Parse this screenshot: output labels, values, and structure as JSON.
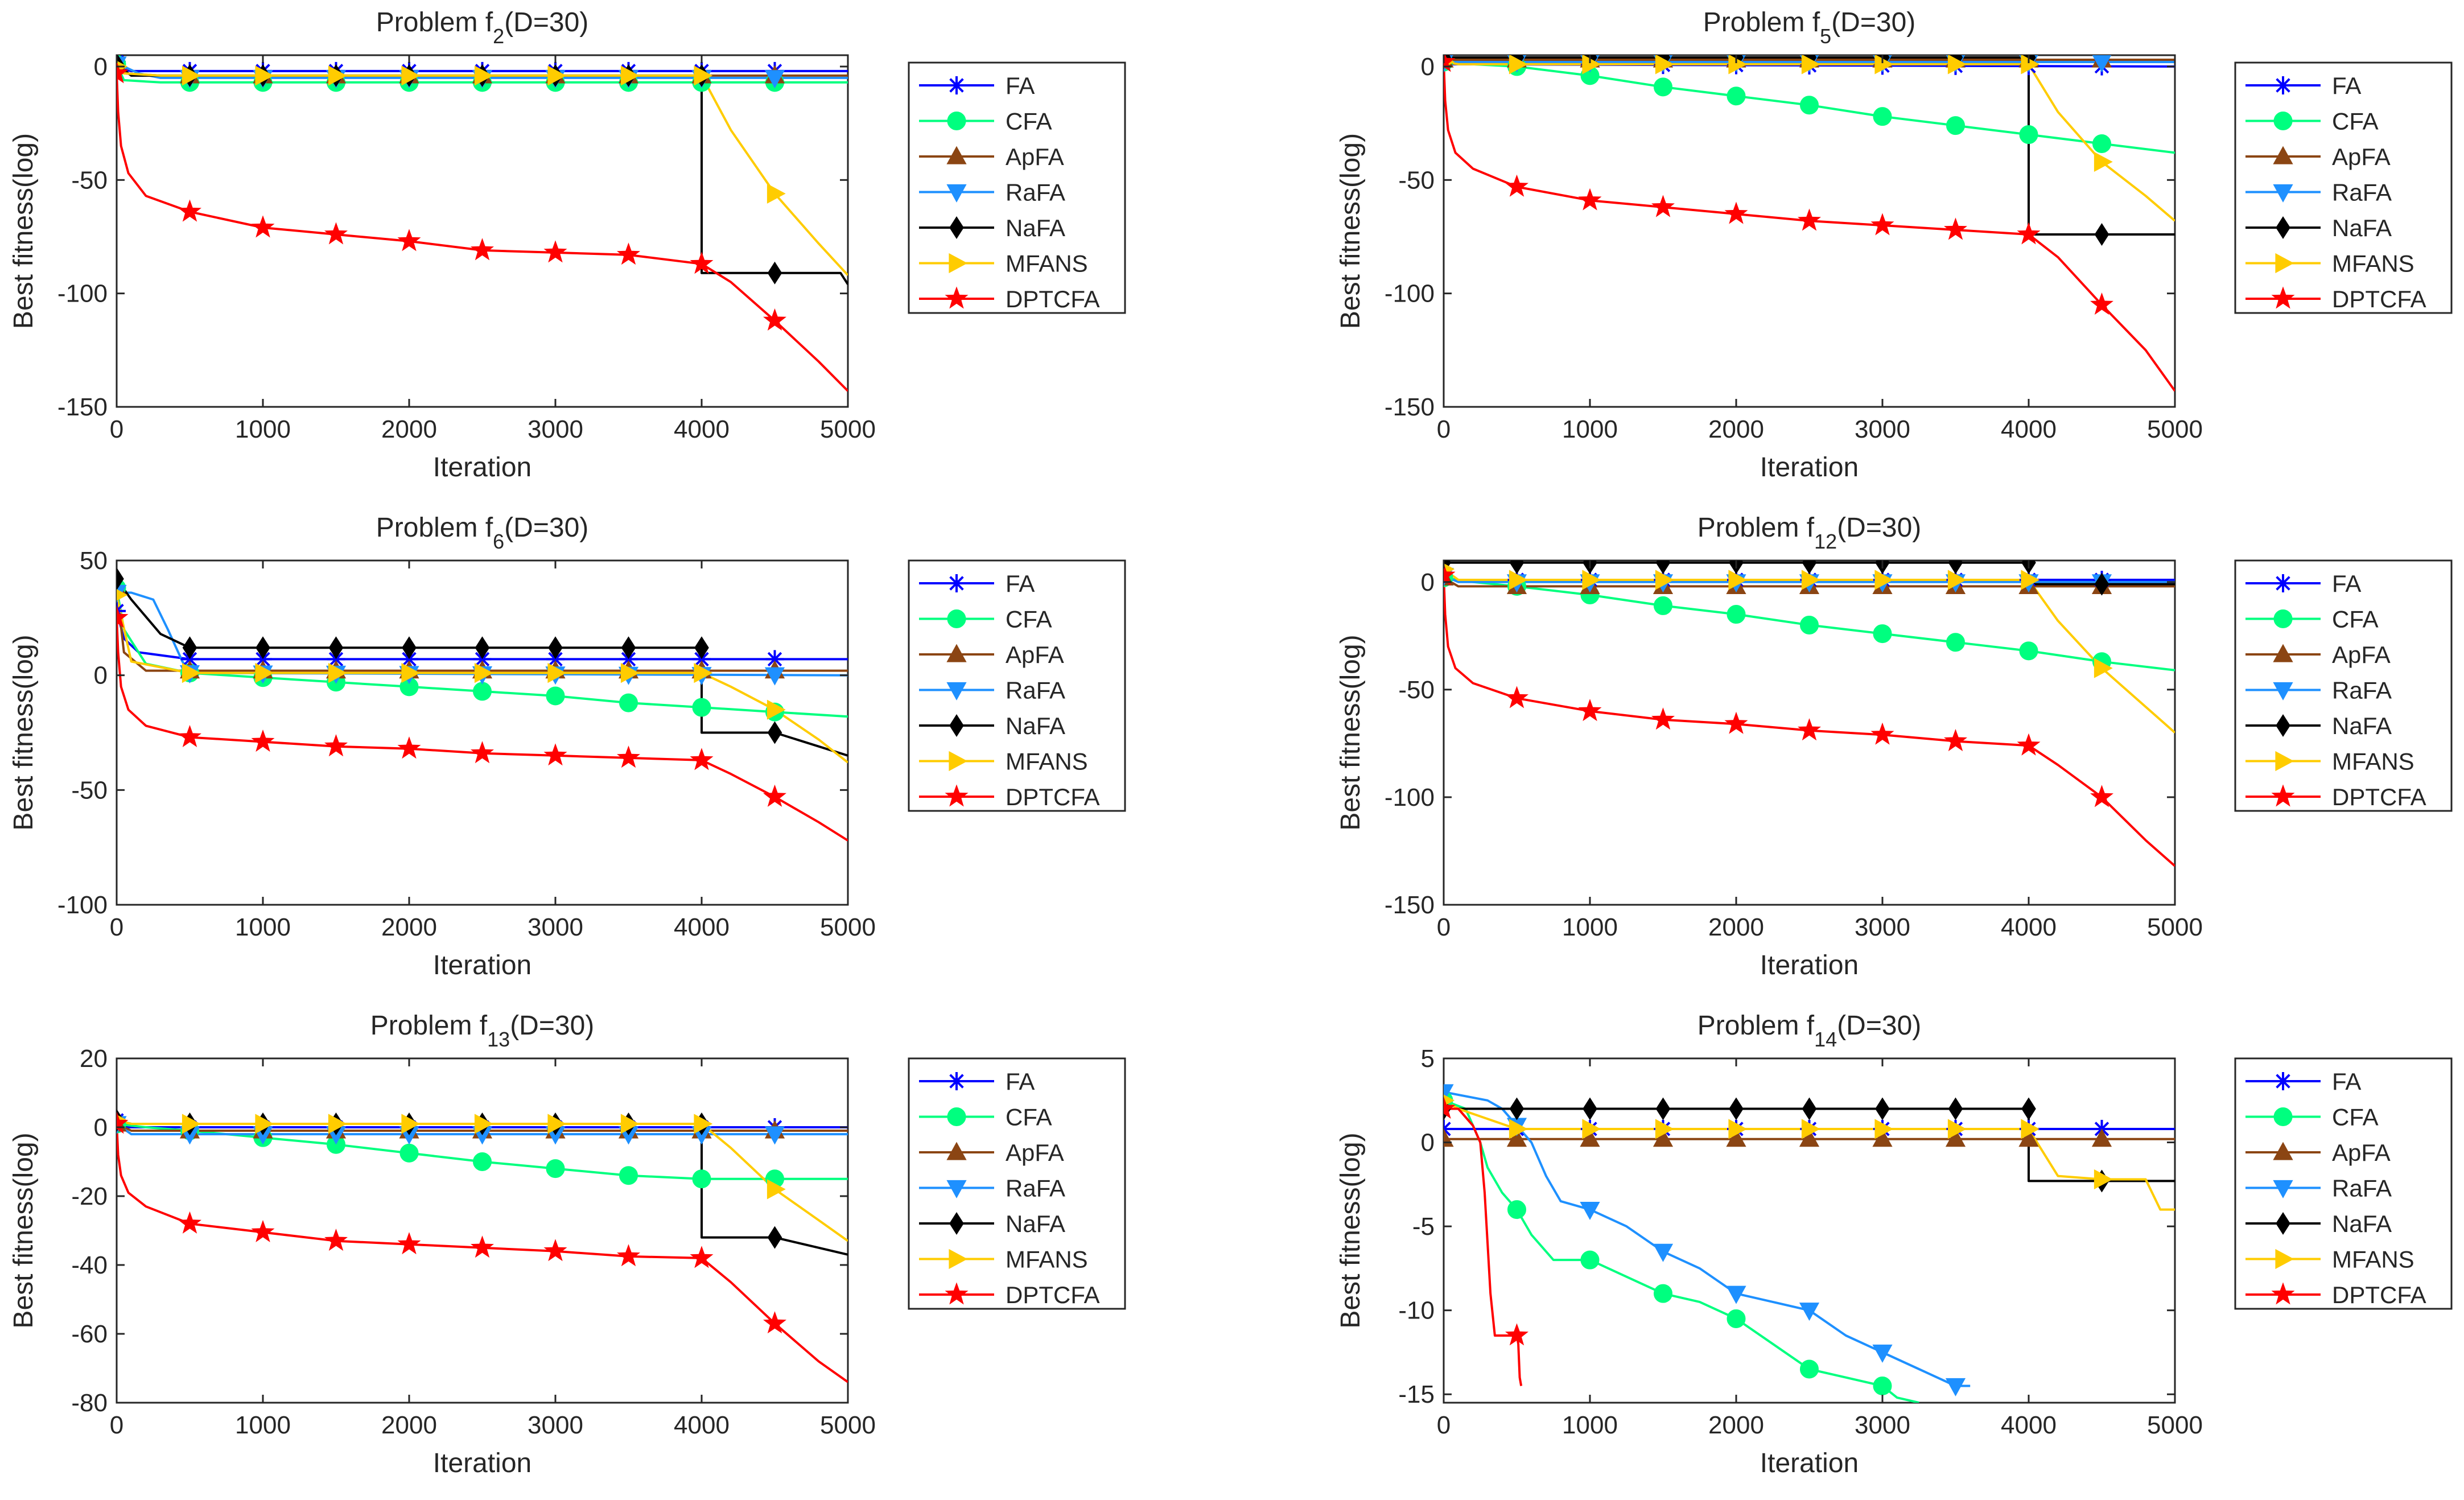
{
  "figure": {
    "layout": "3 rows x 2 columns"
  },
  "colors": {
    "FA": "#0000ff",
    "CFA": "#00ff7f",
    "ApFA": "#8b4513",
    "RaFA": "#1e90ff",
    "NaFA": "#000000",
    "MFANS": "#ffcc00",
    "DPTCFA": "#ff0000",
    "axis": "#262626",
    "legend_border": "#262626"
  },
  "legend_labels": [
    "FA",
    "CFA",
    "ApFA",
    "RaFA",
    "NaFA",
    "MFANS",
    "DPTCFA"
  ],
  "chart_data": [
    {
      "type": "line",
      "title_prefix": "Problem f",
      "title_sub": "2",
      "title_suffix": "(D=30)",
      "xlabel": "Iteration",
      "ylabel": "Best fitness(log)",
      "xlim": [
        0,
        5000
      ],
      "ylim": [
        -150,
        5
      ],
      "xticks": [
        0,
        1000,
        2000,
        3000,
        4000,
        5000
      ],
      "yticks": [
        0,
        -50,
        -100,
        -150
      ],
      "marker_x": [
        0,
        500,
        1000,
        1500,
        2000,
        2500,
        3000,
        3500,
        4000,
        4500
      ],
      "series": [
        {
          "name": "FA",
          "x": [
            0,
            20,
            100,
            5000
          ],
          "y": [
            2,
            -1,
            -2,
            -2
          ]
        },
        {
          "name": "CFA",
          "x": [
            0,
            50,
            300,
            5000
          ],
          "y": [
            1,
            -6,
            -7,
            -7
          ]
        },
        {
          "name": "ApFA",
          "x": [
            0,
            50,
            300,
            5000
          ],
          "y": [
            1,
            -3,
            -4,
            -4
          ]
        },
        {
          "name": "RaFA",
          "x": [
            0,
            50,
            150,
            300,
            5000
          ],
          "y": [
            1,
            0,
            -3,
            -5,
            -5
          ]
        },
        {
          "name": "NaFA",
          "x": [
            0,
            100,
            4000,
            4000,
            4950,
            5000
          ],
          "y": [
            1,
            -4,
            -4,
            -91,
            -91,
            -96
          ]
        },
        {
          "name": "MFANS",
          "x": [
            0,
            50,
            300,
            4000,
            4200,
            4500,
            4800,
            5000
          ],
          "y": [
            0,
            -3,
            -4,
            -4,
            -28,
            -56,
            -78,
            -92
          ]
        },
        {
          "name": "DPTCFA",
          "x": [
            0,
            10,
            30,
            80,
            200,
            500,
            1000,
            1500,
            2000,
            2500,
            3000,
            3500,
            4000,
            4200,
            4500,
            4800,
            5000
          ],
          "y": [
            -3,
            -20,
            -35,
            -47,
            -57,
            -64,
            -71,
            -74,
            -77,
            -81,
            -82,
            -83,
            -87,
            -95,
            -112,
            -130,
            -143
          ]
        }
      ]
    },
    {
      "type": "line",
      "title_prefix": "Problem f",
      "title_sub": "5",
      "title_suffix": "(D=30)",
      "xlabel": "Iteration",
      "ylabel": "Best fitness(log)",
      "xlim": [
        0,
        5000
      ],
      "ylim": [
        -150,
        5
      ],
      "xticks": [
        0,
        1000,
        2000,
        3000,
        4000,
        5000
      ],
      "yticks": [
        0,
        -50,
        -100,
        -150
      ],
      "marker_x": [
        0,
        500,
        1000,
        1500,
        2000,
        2500,
        3000,
        3500,
        4000,
        4500
      ],
      "series": [
        {
          "name": "FA",
          "x": [
            0,
            30,
            5000
          ],
          "y": [
            3,
            1,
            0
          ]
        },
        {
          "name": "CFA",
          "x": [
            0,
            200,
            500,
            1000,
            1500,
            2000,
            2500,
            3000,
            3500,
            4000,
            4500,
            5000
          ],
          "y": [
            2,
            1,
            0,
            -4,
            -9,
            -13,
            -17,
            -22,
            -26,
            -30,
            -34,
            -38
          ]
        },
        {
          "name": "ApFA",
          "x": [
            0,
            100,
            5000
          ],
          "y": [
            3,
            3,
            3
          ]
        },
        {
          "name": "RaFA",
          "x": [
            0,
            100,
            5000
          ],
          "y": [
            2,
            2,
            2
          ]
        },
        {
          "name": "NaFA",
          "x": [
            0,
            100,
            4000,
            4000,
            5000
          ],
          "y": [
            4,
            4,
            4,
            -74,
            -74
          ]
        },
        {
          "name": "MFANS",
          "x": [
            0,
            100,
            4000,
            4200,
            4500,
            4800,
            5000
          ],
          "y": [
            2,
            1,
            1,
            -20,
            -42,
            -57,
            -68
          ]
        },
        {
          "name": "DPTCFA",
          "x": [
            0,
            10,
            30,
            80,
            200,
            500,
            1000,
            1500,
            2000,
            2500,
            3000,
            3500,
            4000,
            4200,
            4500,
            4800,
            5000
          ],
          "y": [
            2,
            -15,
            -28,
            -38,
            -45,
            -53,
            -59,
            -62,
            -65,
            -68,
            -70,
            -72,
            -74,
            -84,
            -105,
            -125,
            -143
          ]
        }
      ]
    },
    {
      "type": "line",
      "title_prefix": "Problem f",
      "title_sub": "6",
      "title_suffix": "(D=30)",
      "xlabel": "Iteration",
      "ylabel": "Best fitness(log)",
      "xlim": [
        0,
        5000
      ],
      "ylim": [
        -100,
        50
      ],
      "xticks": [
        0,
        1000,
        2000,
        3000,
        4000,
        5000
      ],
      "yticks": [
        50,
        0,
        -50,
        -100
      ],
      "marker_x": [
        0,
        500,
        1000,
        1500,
        2000,
        2500,
        3000,
        3500,
        4000,
        4500
      ],
      "series": [
        {
          "name": "FA",
          "x": [
            0,
            50,
            150,
            500,
            5000
          ],
          "y": [
            28,
            16,
            10,
            7,
            7
          ]
        },
        {
          "name": "CFA",
          "x": [
            0,
            50,
            200,
            500,
            1000,
            1500,
            2000,
            2500,
            3000,
            3500,
            4000,
            4500,
            5000
          ],
          "y": [
            38,
            20,
            5,
            1,
            -1,
            -3,
            -5,
            -7,
            -9,
            -12,
            -14,
            -16,
            -18
          ]
        },
        {
          "name": "ApFA",
          "x": [
            0,
            50,
            200,
            5000
          ],
          "y": [
            38,
            10,
            2,
            2
          ]
        },
        {
          "name": "RaFA",
          "x": [
            0,
            100,
            250,
            350,
            450,
            500,
            5000
          ],
          "y": [
            36,
            36,
            33,
            20,
            6,
            1,
            0
          ]
        },
        {
          "name": "NaFA",
          "x": [
            0,
            100,
            300,
            500,
            4000,
            4000,
            4500,
            5000
          ],
          "y": [
            42,
            33,
            18,
            12,
            12,
            -25,
            -25,
            -35
          ]
        },
        {
          "name": "MFANS",
          "x": [
            0,
            100,
            500,
            4000,
            4200,
            4500,
            4800,
            5000
          ],
          "y": [
            35,
            6,
            1,
            1,
            -5,
            -15,
            -28,
            -38
          ]
        },
        {
          "name": "DPTCFA",
          "x": [
            0,
            10,
            30,
            80,
            200,
            500,
            1000,
            1500,
            2000,
            2500,
            3000,
            3500,
            4000,
            4200,
            4500,
            4800,
            5000
          ],
          "y": [
            25,
            10,
            -5,
            -15,
            -22,
            -27,
            -29,
            -31,
            -32,
            -34,
            -35,
            -36,
            -37,
            -43,
            -53,
            -64,
            -72
          ]
        }
      ]
    },
    {
      "type": "line",
      "title_prefix": "Problem f",
      "title_sub": "12",
      "title_suffix": "(D=30)",
      "xlabel": "Iteration",
      "ylabel": "Best fitness(log)",
      "xlim": [
        0,
        5000
      ],
      "ylim": [
        -150,
        10
      ],
      "xticks": [
        0,
        1000,
        2000,
        3000,
        4000,
        5000
      ],
      "yticks": [
        0,
        -50,
        -100,
        -150
      ],
      "marker_x": [
        0,
        500,
        1000,
        1500,
        2000,
        2500,
        3000,
        3500,
        4000,
        4500
      ],
      "series": [
        {
          "name": "FA",
          "x": [
            0,
            30,
            5000
          ],
          "y": [
            3,
            1,
            1
          ]
        },
        {
          "name": "CFA",
          "x": [
            0,
            200,
            500,
            1000,
            1500,
            2000,
            2500,
            3000,
            3500,
            4000,
            4500,
            5000
          ],
          "y": [
            2,
            0,
            -2,
            -6,
            -11,
            -15,
            -20,
            -24,
            -28,
            -32,
            -37,
            -41
          ]
        },
        {
          "name": "ApFA",
          "x": [
            0,
            100,
            5000
          ],
          "y": [
            2,
            -2,
            -2
          ]
        },
        {
          "name": "RaFA",
          "x": [
            0,
            100,
            5000
          ],
          "y": [
            3,
            0,
            0
          ]
        },
        {
          "name": "NaFA",
          "x": [
            0,
            100,
            4000,
            4000,
            5000
          ],
          "y": [
            9,
            9,
            9,
            -1,
            -1
          ]
        },
        {
          "name": "MFANS",
          "x": [
            0,
            100,
            4000,
            4200,
            4500,
            4800,
            5000
          ],
          "y": [
            6,
            1,
            1,
            -18,
            -40,
            -58,
            -70
          ]
        },
        {
          "name": "DPTCFA",
          "x": [
            0,
            10,
            30,
            80,
            200,
            500,
            1000,
            1500,
            2000,
            2500,
            3000,
            3500,
            4000,
            4200,
            4500,
            4800,
            5000
          ],
          "y": [
            3,
            -15,
            -30,
            -40,
            -47,
            -54,
            -60,
            -64,
            -66,
            -69,
            -71,
            -74,
            -76,
            -85,
            -100,
            -120,
            -132
          ]
        }
      ]
    },
    {
      "type": "line",
      "title_prefix": "Problem f",
      "title_sub": "13",
      "title_suffix": "(D=30)",
      "xlabel": "Iteration",
      "ylabel": "Best fitness(log)",
      "xlim": [
        0,
        5000
      ],
      "ylim": [
        -80,
        20
      ],
      "xticks": [
        0,
        1000,
        2000,
        3000,
        4000,
        5000
      ],
      "yticks": [
        20,
        0,
        -20,
        -40,
        -60,
        -80
      ],
      "marker_x": [
        0,
        500,
        1000,
        1500,
        2000,
        2500,
        3000,
        3500,
        4000,
        4500
      ],
      "series": [
        {
          "name": "FA",
          "x": [
            0,
            30,
            5000
          ],
          "y": [
            2,
            0,
            0
          ]
        },
        {
          "name": "CFA",
          "x": [
            0,
            200,
            500,
            1000,
            1500,
            2000,
            2500,
            3000,
            3500,
            4000,
            4200,
            5000
          ],
          "y": [
            1,
            0,
            -1,
            -3,
            -5,
            -7.5,
            -10,
            -12,
            -14,
            -15,
            -15,
            -15
          ]
        },
        {
          "name": "ApFA",
          "x": [
            0,
            100,
            5000
          ],
          "y": [
            1,
            -1,
            -1
          ]
        },
        {
          "name": "RaFA",
          "x": [
            0,
            100,
            5000
          ],
          "y": [
            1,
            -2,
            -2
          ]
        },
        {
          "name": "NaFA",
          "x": [
            0,
            100,
            4000,
            4000,
            4500,
            5000
          ],
          "y": [
            2,
            1,
            1,
            -32,
            -32,
            -37
          ]
        },
        {
          "name": "MFANS",
          "x": [
            0,
            100,
            4000,
            4200,
            4500,
            4800,
            5000
          ],
          "y": [
            2,
            1,
            1,
            -6,
            -18,
            -27,
            -33
          ]
        },
        {
          "name": "DPTCFA",
          "x": [
            0,
            10,
            30,
            80,
            200,
            500,
            1000,
            1500,
            2000,
            2500,
            3000,
            3500,
            4000,
            4200,
            4500,
            4800,
            5000
          ],
          "y": [
            1,
            -8,
            -14,
            -19,
            -23,
            -28,
            -30.5,
            -33,
            -34,
            -35,
            -36,
            -37.5,
            -38,
            -45,
            -57,
            -68,
            -74
          ]
        }
      ]
    },
    {
      "type": "line",
      "title_prefix": "Problem f",
      "title_sub": "14",
      "title_suffix": "(D=30)",
      "xlabel": "Iteration",
      "ylabel": "Best fitness(log)",
      "xlim": [
        0,
        5000
      ],
      "ylim": [
        -15.5,
        5
      ],
      "xticks": [
        0,
        1000,
        2000,
        3000,
        4000,
        5000
      ],
      "yticks": [
        5,
        0,
        -5,
        -10,
        -15
      ],
      "marker_x": [
        0,
        500,
        1000,
        1500,
        2000,
        2500,
        3000,
        3500,
        4000,
        4500
      ],
      "series": [
        {
          "name": "FA",
          "x": [
            0,
            5000
          ],
          "y": [
            0.8,
            0.8
          ]
        },
        {
          "name": "CFA",
          "x": [
            0,
            150,
            250,
            300,
            400,
            500,
            600,
            750,
            1000,
            1250,
            1500,
            1750,
            2000,
            2250,
            2500,
            2750,
            3000,
            3100,
            3250
          ],
          "y": [
            2.5,
            2,
            0,
            -1.5,
            -3,
            -4,
            -5.5,
            -7,
            -7,
            -8,
            -9,
            -9.5,
            -10.5,
            -12,
            -13.5,
            -14,
            -14.5,
            -15.2,
            -15.5
          ]
        },
        {
          "name": "ApFA",
          "x": [
            0,
            5000
          ],
          "y": [
            0.2,
            0.2
          ]
        },
        {
          "name": "RaFA",
          "x": [
            0,
            300,
            400,
            500,
            600,
            700,
            800,
            1000,
            1250,
            1500,
            1750,
            2000,
            2250,
            2500,
            2750,
            3000,
            3250,
            3500,
            3600
          ],
          "y": [
            3,
            2.5,
            2,
            1,
            0,
            -2,
            -3.5,
            -4,
            -5,
            -6.5,
            -7.5,
            -9,
            -9.5,
            -10,
            -11.5,
            -12.5,
            -13.5,
            -14.5,
            -14.5
          ]
        },
        {
          "name": "NaFA",
          "x": [
            0,
            100,
            4000,
            4000,
            5000
          ],
          "y": [
            2,
            2,
            2,
            -2.3,
            -2.3
          ]
        },
        {
          "name": "MFANS",
          "x": [
            0,
            100,
            500,
            4000,
            4200,
            4500,
            4800,
            4900,
            5000
          ],
          "y": [
            2.5,
            2,
            0.8,
            0.8,
            -2,
            -2.2,
            -2.2,
            -4,
            -4
          ]
        },
        {
          "name": "DPTCFA",
          "x": [
            0,
            100,
            200,
            250,
            280,
            300,
            320,
            350,
            400,
            500,
            510,
            520,
            530
          ],
          "y": [
            2,
            2,
            1,
            0,
            -3,
            -6,
            -9,
            -11.5,
            -11.5,
            -11.5,
            -12,
            -14,
            -14.5
          ]
        }
      ]
    }
  ]
}
